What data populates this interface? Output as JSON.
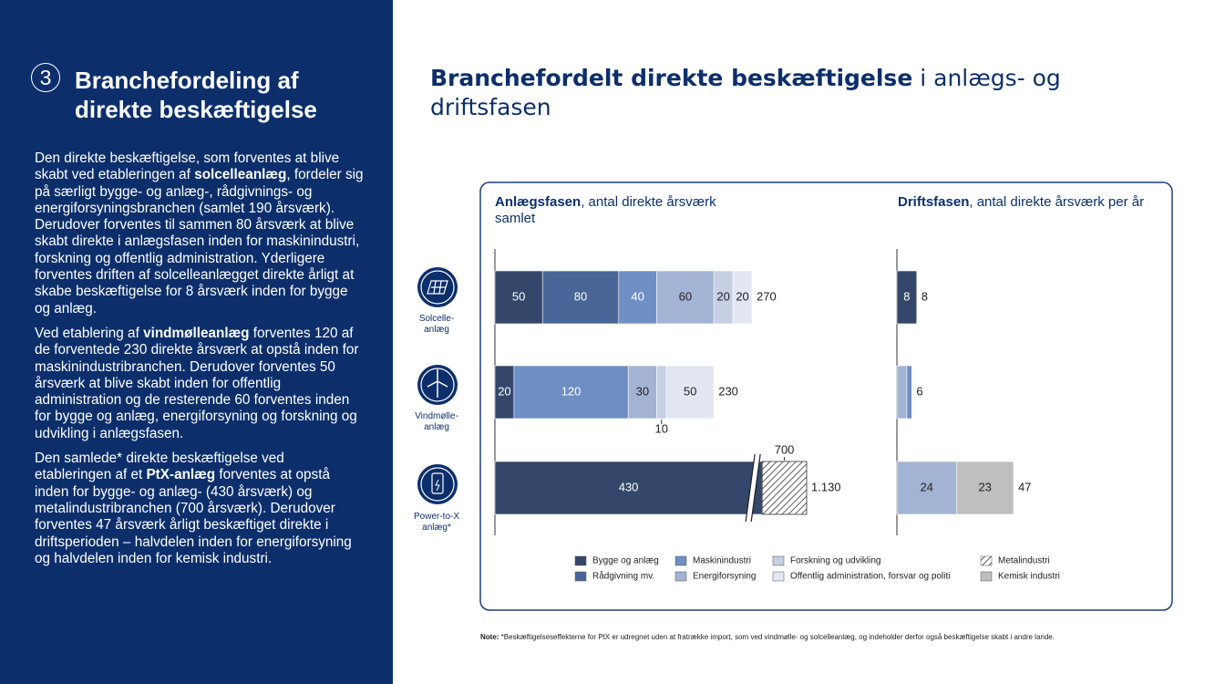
{
  "sidebar": {
    "number": "3",
    "title": "Branchefordeling af direkte beskæftigelse",
    "paragraphs": [
      [
        {
          "text": "Den direkte beskæftigelse, som forventes at blive skabt ved etableringen af ",
          "bold": false
        },
        {
          "text": "solcelleanlæg",
          "bold": true
        },
        {
          "text": ", fordeler sig på særligt bygge- og anlæg-, rådgivnings- og energiforsyningsbranchen (samlet 190 årsværk). Derudover forventes til sammen 80 årsværk at blive skabt direkte i anlægsfasen inden for maskinindustri, forskning og offentlig administration. Yderligere forventes driften af solcelleanlægget direkte årligt at skabe beskæftigelse for 8 årsværk inden for bygge og anlæg.",
          "bold": false
        }
      ],
      [
        {
          "text": "Ved etablering af ",
          "bold": false
        },
        {
          "text": "vindmølleanlæg",
          "bold": true
        },
        {
          "text": " forventes 120 af de forventede 230 direkte årsværk at opstå inden for maskinindustribranchen. Derudover forventes 50 årsværk at blive skabt inden for offentlig administration og de resterende 60 forventes inden for bygge og anlæg, energiforsyning og forskning og udvikling i anlægsfasen.",
          "bold": false
        }
      ],
      [
        {
          "text": "Den samlede* direkte beskæftigelse ved etableringen af et ",
          "bold": false
        },
        {
          "text": "PtX-anlæg",
          "bold": true
        },
        {
          "text": " forventes at opstå inden for bygge- og anlæg- (430 årsværk) og metalindustribranchen (700 årsværk). Derudover forventes 47 årsværk årligt beskæftiget direkte i driftsperioden – halvdelen inden for energiforsyning og halvdelen inden for kemisk industri.",
          "bold": false
        }
      ]
    ]
  },
  "header": {
    "title_bold": "Branchefordelt direkte beskæftigelse",
    "title_rest": " i anlægs- og driftsfasen"
  },
  "chart_data": [
    {
      "type": "stacked-bar",
      "orientation": "horizontal",
      "title": "Anlægsfasen",
      "title_suffix": ", antal direkte årsværk samlet",
      "categories": [
        "Solcelle-\nanlæg",
        "Vindmølle-\nanlæg",
        "Power-to-X\nanlæg*"
      ],
      "axis_break": true,
      "small_labels": "outside",
      "series": [
        {
          "name": "Bygge og anlæg",
          "color": "#34476b",
          "values": [
            50,
            20,
            430
          ]
        },
        {
          "name": "Rådgivning mv.",
          "color": "#4a6698",
          "values": [
            80,
            null,
            null
          ]
        },
        {
          "name": "Maskinindustri",
          "color": "#6f8fc4",
          "values": [
            40,
            120,
            null
          ]
        },
        {
          "name": "Energiforsyning",
          "color": "#a3b3d4",
          "values": [
            60,
            30,
            null
          ]
        },
        {
          "name": "Forskning og udvikling",
          "color": "#c6cfe4",
          "values": [
            20,
            10,
            null
          ]
        },
        {
          "name": "Offentlig administration, forsvar og politi",
          "color": "#e2e7f2",
          "values": [
            20,
            50,
            null
          ]
        },
        {
          "name": "Metalindustri",
          "color": "#333333",
          "pattern": "hatch",
          "values": [
            null,
            null,
            700
          ]
        }
      ],
      "totals": {
        "values": [
          270,
          230,
          1130
        ],
        "value_labels": [
          "270",
          "230",
          "1.130"
        ]
      }
    },
    {
      "type": "stacked-bar",
      "orientation": "horizontal",
      "title": "Driftsfasen",
      "title_suffix": ", antal direkte årsværk per år",
      "axis_break": false,
      "small_labels": "hidden",
      "series": [
        {
          "name": "Bygge og anlæg",
          "color": "#34476b",
          "values": [
            8,
            null,
            null
          ]
        },
        {
          "name": "Energiforsyning",
          "color": "#a3b3d4",
          "values": [
            null,
            4,
            24
          ]
        },
        {
          "name": "Maskinindustri",
          "color": "#6f8fc4",
          "values": [
            null,
            2,
            null
          ]
        },
        {
          "name": "Kemisk industri",
          "color": "#bfbfbf",
          "values": [
            null,
            null,
            23
          ]
        }
      ],
      "totals": {
        "values": [
          8,
          6,
          47
        ]
      }
    }
  ],
  "note": {
    "label": "Note:",
    "text": " *Beskæftigelseseffekterne for PtX er udregnet uden at fratrække import, som ved vindmølle- og solcelleanlæg, og indeholder derfor også beskæftigelse skabt i andre lande."
  }
}
